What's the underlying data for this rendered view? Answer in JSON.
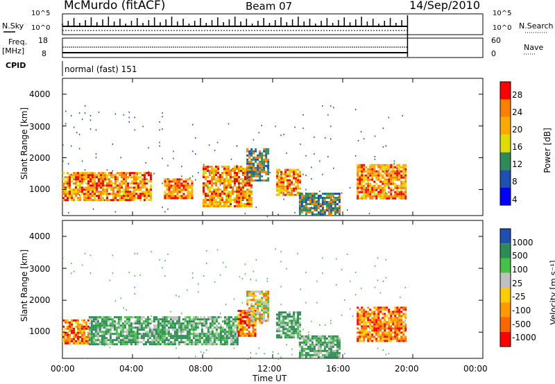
{
  "header": {
    "station": "McMurdo (fitACF)",
    "beam": "Beam 07",
    "date": "14/Sep/2010"
  },
  "strip": {
    "nsky_label": "N.Sky",
    "nsky_ticks": [
      "10^5",
      "10^0"
    ],
    "nsearch_label": "N.Search",
    "nsearch_ticks": [
      "10^5",
      "10^0"
    ],
    "freq_label": "Freq.",
    "freq_unit": "[MHz]",
    "freq_ticks": [
      "18",
      "8"
    ],
    "nave_label": "Nave",
    "nave_ticks": [
      "60",
      "0"
    ],
    "cpid_label": "CPID",
    "cpid_value": "normal (fast) 151"
  },
  "axes": {
    "xlabel": "Time UT",
    "xticks": [
      "00:00",
      "04:00",
      "08:00",
      "12:00",
      "16:00",
      "20:00",
      "00:00"
    ],
    "ylabel_power": "Slant Range [km]",
    "ylabel_velocity": "Slant Range [km]",
    "yticks": [
      "4000",
      "3000",
      "2000",
      "1000"
    ]
  },
  "colorbars": {
    "power_label": "Power [dB]",
    "power_ticks": [
      "28",
      "24",
      "20",
      "16",
      "12",
      "8",
      "4"
    ],
    "velocity_label": "Velocity [m s⁻¹]",
    "velocity_ticks": [
      "1000",
      "500",
      "100",
      "25",
      "-25",
      "-100",
      "-500",
      "-1000"
    ]
  },
  "chart_data": [
    {
      "type": "heatmap",
      "title": "Power",
      "x_range_hours": [
        0,
        24
      ],
      "ylim": [
        180,
        4500
      ],
      "data_end_hour": 19.7,
      "colorbar": {
        "label": "Power [dB]",
        "ticks": [
          28,
          24,
          20,
          16,
          12,
          8,
          4
        ],
        "colors": [
          "#ff0000",
          "#ff7f00",
          "#ffaa00",
          "#dddd00",
          "#2e8b57",
          "#1e50b4",
          "#0000ff"
        ]
      },
      "echo_bands": [
        {
          "t": [
            0.0,
            5.0
          ],
          "range": [
            650,
            1550
          ],
          "level": "high"
        },
        {
          "t": [
            5.8,
            7.4
          ],
          "range": [
            700,
            1350
          ],
          "level": "high"
        },
        {
          "t": [
            8.0,
            10.8
          ],
          "range": [
            450,
            1750
          ],
          "level": "high"
        },
        {
          "t": [
            10.5,
            11.8
          ],
          "range": [
            1300,
            2300
          ],
          "level": "medium"
        },
        {
          "t": [
            12.2,
            13.6
          ],
          "range": [
            850,
            1650
          ],
          "level": "high"
        },
        {
          "t": [
            13.5,
            15.8
          ],
          "range": [
            200,
            900
          ],
          "level": "medium"
        },
        {
          "t": [
            16.8,
            19.6
          ],
          "range": [
            750,
            1800
          ],
          "level": "high"
        }
      ]
    },
    {
      "type": "heatmap",
      "title": "Velocity",
      "x_range_hours": [
        0,
        24
      ],
      "ylim": [
        180,
        4500
      ],
      "data_end_hour": 19.7,
      "colorbar": {
        "label": "Velocity [m s⁻¹]",
        "ticks": [
          1000,
          500,
          100,
          25,
          -25,
          -100,
          -500,
          -1000
        ],
        "colors": [
          "#1e50b4",
          "#2e8b57",
          "#45c145",
          "#c0c0c0",
          "#ffcc00",
          "#ff9900",
          "#ff6600",
          "#ff0000"
        ]
      },
      "echo_bands": [
        {
          "t": [
            0.0,
            1.5
          ],
          "range": [
            650,
            1400
          ],
          "velocity": "negative"
        },
        {
          "t": [
            1.5,
            10.0
          ],
          "range": [
            650,
            1500
          ],
          "velocity": "positive"
        },
        {
          "t": [
            10.0,
            11.0
          ],
          "range": [
            900,
            1700
          ],
          "velocity": "negative"
        },
        {
          "t": [
            10.5,
            11.8
          ],
          "range": [
            1300,
            2300
          ],
          "velocity": "mixed"
        },
        {
          "t": [
            12.2,
            13.6
          ],
          "range": [
            850,
            1650
          ],
          "velocity": "positive"
        },
        {
          "t": [
            13.5,
            15.8
          ],
          "range": [
            200,
            900
          ],
          "velocity": "positive"
        },
        {
          "t": [
            16.8,
            19.6
          ],
          "range": [
            750,
            1800
          ],
          "velocity": "negative"
        }
      ]
    }
  ]
}
